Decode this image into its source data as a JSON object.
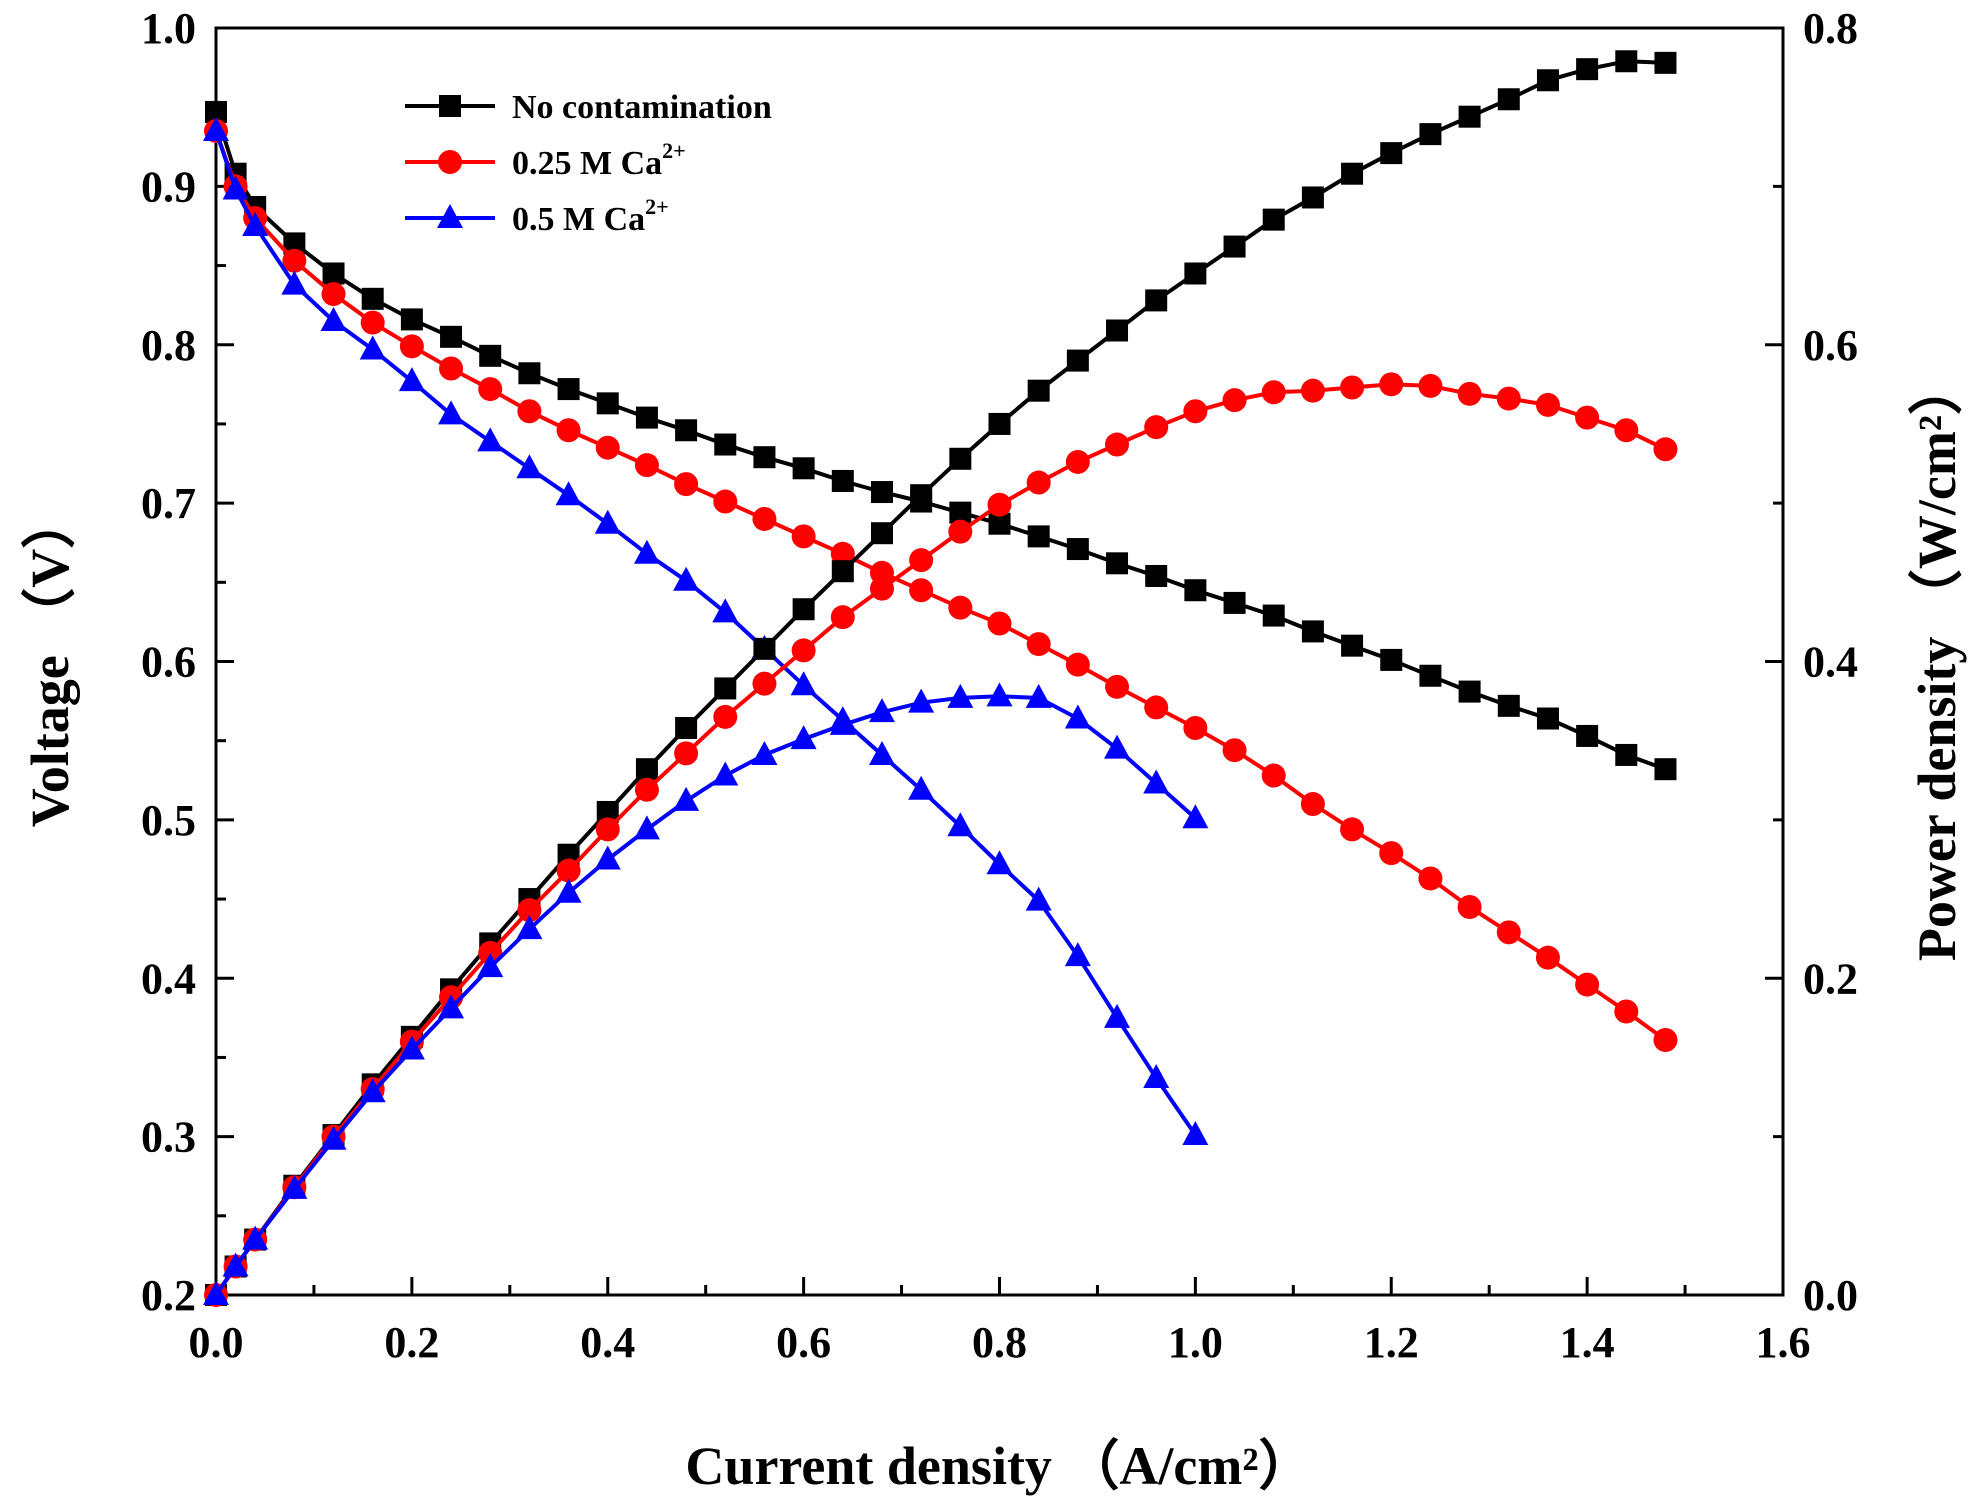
{
  "chart_data": {
    "type": "line",
    "title": "",
    "xlabel": "Current density （A/cm²）",
    "ylabel_left": "Voltage （V）",
    "ylabel_right": "Power density （W/cm²）",
    "xlim": [
      0.0,
      1.6
    ],
    "ylim_left": [
      0.2,
      1.0
    ],
    "ylim_right": [
      0.0,
      0.8
    ],
    "x_ticks": [
      "0.0",
      "0.2",
      "0.4",
      "0.6",
      "0.8",
      "1.0",
      "1.2",
      "1.4",
      "1.6"
    ],
    "y_left_ticks": [
      "0.2",
      "0.3",
      "0.4",
      "0.5",
      "0.6",
      "0.7",
      "0.8",
      "0.9",
      "1.0"
    ],
    "y_right_ticks": [
      "0.0",
      "0.2",
      "0.4",
      "0.6",
      "0.8"
    ],
    "grid": false,
    "legend_position": "top-left",
    "legend": [
      {
        "label": "No contamination",
        "sup": "",
        "color": "#000000",
        "marker": "square"
      },
      {
        "label": "0.25 M Ca",
        "sup": "2+",
        "color": "#ff0000",
        "marker": "circle"
      },
      {
        "label": "0.5 M Ca",
        "sup": "2+",
        "color": "#0000ff",
        "marker": "triangle"
      }
    ],
    "series": [
      {
        "name": "No contamination",
        "kind": "voltage",
        "axis": "left",
        "color": "#000000",
        "marker": "square",
        "x": [
          0.0,
          0.02,
          0.04,
          0.08,
          0.12,
          0.16,
          0.2,
          0.24,
          0.28,
          0.32,
          0.36,
          0.4,
          0.44,
          0.48,
          0.52,
          0.56,
          0.6,
          0.64,
          0.68,
          0.72,
          0.76,
          0.8,
          0.84,
          0.88,
          0.92,
          0.96,
          1.0,
          1.04,
          1.08,
          1.12,
          1.16,
          1.2,
          1.24,
          1.28,
          1.32,
          1.36,
          1.4,
          1.44,
          1.48
        ],
        "y": [
          0.947,
          0.908,
          0.887,
          0.864,
          0.845,
          0.829,
          0.816,
          0.805,
          0.793,
          0.782,
          0.772,
          0.763,
          0.754,
          0.746,
          0.737,
          0.729,
          0.722,
          0.714,
          0.707,
          0.701,
          0.694,
          0.687,
          0.679,
          0.671,
          0.662,
          0.654,
          0.645,
          0.637,
          0.629,
          0.619,
          0.61,
          0.601,
          0.591,
          0.581,
          0.572,
          0.564,
          0.553,
          0.541,
          0.532
        ]
      },
      {
        "name": "0.25 M Ca2+",
        "kind": "voltage",
        "axis": "left",
        "color": "#ff0000",
        "marker": "circle",
        "x": [
          0.0,
          0.02,
          0.04,
          0.08,
          0.12,
          0.16,
          0.2,
          0.24,
          0.28,
          0.32,
          0.36,
          0.4,
          0.44,
          0.48,
          0.52,
          0.56,
          0.6,
          0.64,
          0.68,
          0.72,
          0.76,
          0.8,
          0.84,
          0.88,
          0.92,
          0.96,
          1.0,
          1.04,
          1.08,
          1.12,
          1.16,
          1.2,
          1.24,
          1.28,
          1.32,
          1.36,
          1.4,
          1.44,
          1.48
        ],
        "y": [
          0.935,
          0.9,
          0.88,
          0.853,
          0.832,
          0.814,
          0.799,
          0.785,
          0.772,
          0.758,
          0.746,
          0.735,
          0.724,
          0.712,
          0.701,
          0.69,
          0.679,
          0.668,
          0.656,
          0.645,
          0.634,
          0.624,
          0.611,
          0.598,
          0.584,
          0.571,
          0.558,
          0.544,
          0.528,
          0.51,
          0.494,
          0.479,
          0.463,
          0.445,
          0.429,
          0.413,
          0.396,
          0.379,
          0.361
        ]
      },
      {
        "name": "0.5 M Ca2+",
        "kind": "voltage",
        "axis": "left",
        "color": "#0000ff",
        "marker": "triangle",
        "x": [
          0.0,
          0.02,
          0.04,
          0.08,
          0.12,
          0.16,
          0.2,
          0.24,
          0.28,
          0.32,
          0.36,
          0.4,
          0.44,
          0.48,
          0.52,
          0.56,
          0.6,
          0.64,
          0.68,
          0.72,
          0.76,
          0.8,
          0.84,
          0.88,
          0.92,
          0.96,
          1.0
        ],
        "y": [
          0.935,
          0.898,
          0.875,
          0.838,
          0.815,
          0.797,
          0.777,
          0.756,
          0.739,
          0.722,
          0.705,
          0.687,
          0.668,
          0.651,
          0.631,
          0.608,
          0.585,
          0.563,
          0.541,
          0.519,
          0.496,
          0.472,
          0.449,
          0.414,
          0.375,
          0.337,
          0.301
        ]
      },
      {
        "name": "No contamination",
        "kind": "power",
        "axis": "right",
        "color": "#000000",
        "marker": "square",
        "x": [
          0.0,
          0.02,
          0.04,
          0.08,
          0.12,
          0.16,
          0.2,
          0.24,
          0.28,
          0.32,
          0.36,
          0.4,
          0.44,
          0.48,
          0.52,
          0.56,
          0.6,
          0.64,
          0.68,
          0.72,
          0.76,
          0.8,
          0.84,
          0.88,
          0.92,
          0.96,
          1.0,
          1.04,
          1.08,
          1.12,
          1.16,
          1.2,
          1.24,
          1.28,
          1.32,
          1.36,
          1.4,
          1.44,
          1.48
        ],
        "y": [
          0.0,
          0.018,
          0.035,
          0.069,
          0.101,
          0.133,
          0.163,
          0.193,
          0.222,
          0.25,
          0.278,
          0.305,
          0.332,
          0.358,
          0.383,
          0.408,
          0.433,
          0.457,
          0.481,
          0.505,
          0.528,
          0.55,
          0.571,
          0.59,
          0.609,
          0.628,
          0.645,
          0.662,
          0.679,
          0.693,
          0.708,
          0.721,
          0.733,
          0.744,
          0.755,
          0.767,
          0.774,
          0.779,
          0.778
        ]
      },
      {
        "name": "0.25 M Ca2+",
        "kind": "power",
        "axis": "right",
        "color": "#ff0000",
        "marker": "circle",
        "x": [
          0.0,
          0.02,
          0.04,
          0.08,
          0.12,
          0.16,
          0.2,
          0.24,
          0.28,
          0.32,
          0.36,
          0.4,
          0.44,
          0.48,
          0.52,
          0.56,
          0.6,
          0.64,
          0.68,
          0.72,
          0.76,
          0.8,
          0.84,
          0.88,
          0.92,
          0.96,
          1.0,
          1.04,
          1.08,
          1.12,
          1.16,
          1.2,
          1.24,
          1.28,
          1.32,
          1.36,
          1.4,
          1.44,
          1.48
        ],
        "y": [
          0.0,
          0.018,
          0.035,
          0.068,
          0.1,
          0.13,
          0.16,
          0.188,
          0.216,
          0.243,
          0.268,
          0.294,
          0.319,
          0.342,
          0.365,
          0.386,
          0.407,
          0.428,
          0.446,
          0.464,
          0.482,
          0.499,
          0.513,
          0.526,
          0.537,
          0.548,
          0.558,
          0.565,
          0.57,
          0.571,
          0.573,
          0.575,
          0.574,
          0.569,
          0.566,
          0.562,
          0.554,
          0.546,
          0.534
        ]
      },
      {
        "name": "0.5 M Ca2+",
        "kind": "power",
        "axis": "right",
        "color": "#0000ff",
        "marker": "triangle",
        "x": [
          0.0,
          0.02,
          0.04,
          0.08,
          0.12,
          0.16,
          0.2,
          0.24,
          0.28,
          0.32,
          0.36,
          0.4,
          0.44,
          0.48,
          0.52,
          0.56,
          0.6,
          0.64,
          0.68,
          0.72,
          0.76,
          0.8,
          0.84,
          0.88,
          0.92,
          0.96,
          1.0
        ],
        "y": [
          0.0,
          0.018,
          0.035,
          0.067,
          0.098,
          0.128,
          0.155,
          0.181,
          0.207,
          0.231,
          0.254,
          0.275,
          0.294,
          0.312,
          0.328,
          0.341,
          0.351,
          0.36,
          0.368,
          0.374,
          0.377,
          0.378,
          0.377,
          0.364,
          0.345,
          0.323,
          0.301
        ]
      }
    ]
  }
}
